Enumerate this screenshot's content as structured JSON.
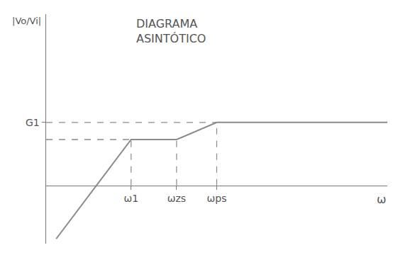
{
  "chart_data": {
    "type": "line",
    "title": "DIAGRAMA ASINTÓTICO",
    "x_label": "ω",
    "y_label": "|Vo/Vi|",
    "x": [
      0.15,
      1.27,
      1.95,
      2.55,
      5.1
    ],
    "values": [
      -0.78,
      0.67,
      0.67,
      0.92,
      0.92
    ],
    "color": "#8a8a8a",
    "line_style": "solid",
    "xlim": [
      0,
      5.1
    ],
    "ylim": [
      -0.85,
      2.5
    ],
    "xticks": [
      {
        "value": 1.27,
        "label": "ω1"
      },
      {
        "value": 1.95,
        "label": "ωzs"
      },
      {
        "value": 2.55,
        "label": "ωps"
      }
    ],
    "yticks": [
      {
        "value": 0.92,
        "label": "G1"
      }
    ],
    "grid": false
  }
}
